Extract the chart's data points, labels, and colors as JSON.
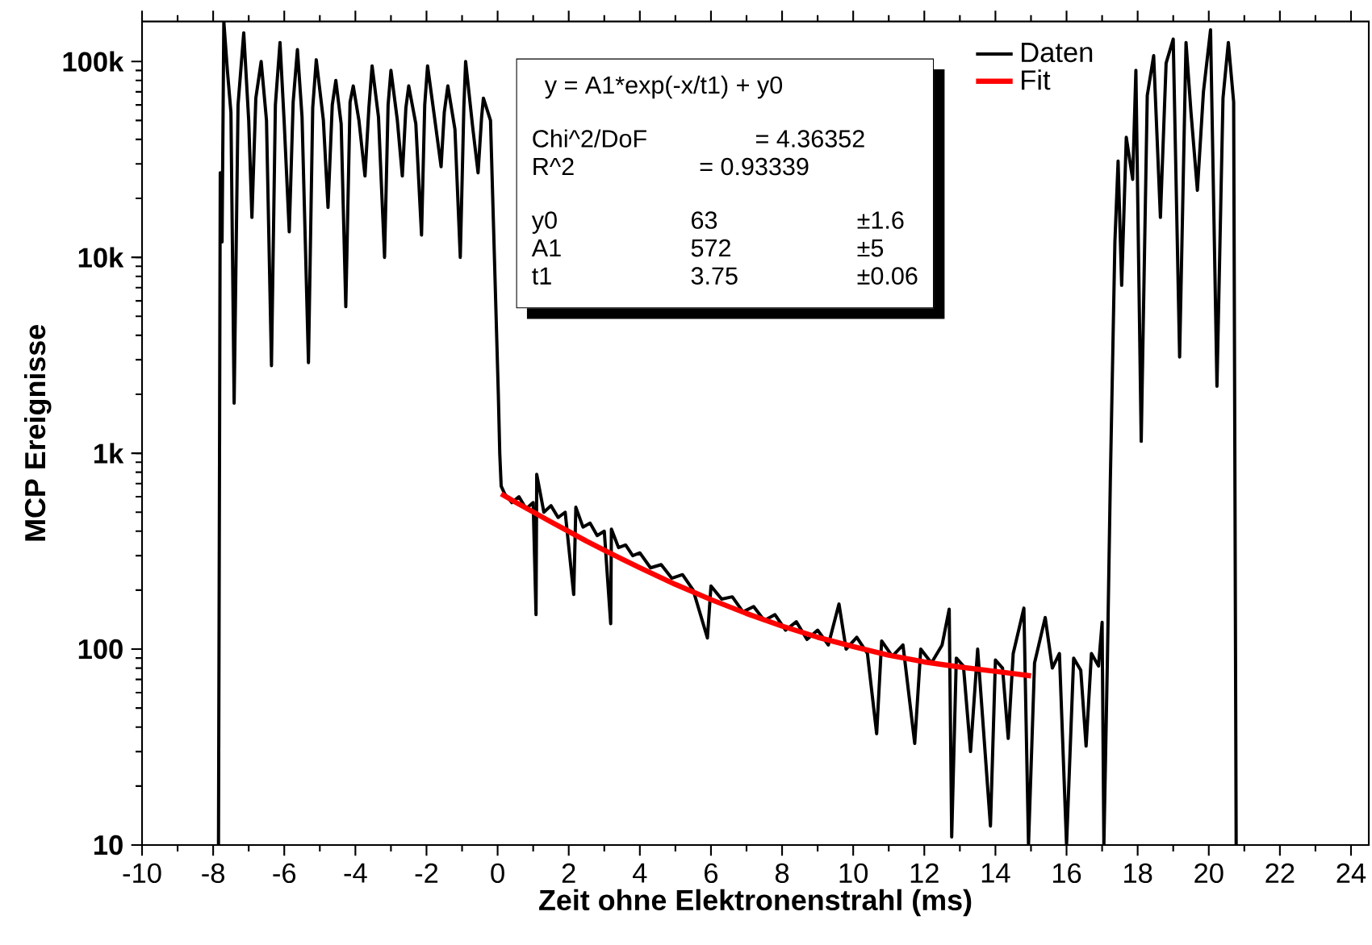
{
  "chart_data": {
    "type": "line",
    "xlabel": "Zeit ohne Elektronenstrahl  (ms)",
    "ylabel": "MCP Ereignisse",
    "log": "y",
    "legend": "top right",
    "line_style": "solid",
    "xlim": [
      -10,
      24.5
    ],
    "ylim": [
      10,
      160000
    ],
    "xticks": [
      -10,
      -8,
      -6,
      -4,
      -2,
      0,
      2,
      4,
      6,
      8,
      10,
      12,
      14,
      16,
      18,
      20,
      22,
      24
    ],
    "yticks": [
      10,
      100,
      {
        "value": 1000,
        "label": "1k"
      },
      {
        "value": 10000,
        "label": "10k"
      },
      {
        "value": 100000,
        "label": "100k"
      }
    ],
    "series": [
      {
        "name": "Daten",
        "color": "#000000",
        "x": [
          -7.85,
          -7.8,
          -7.75,
          -7.7,
          -7.6,
          -7.5,
          -7.41,
          -7.3,
          -7.14,
          -7.0,
          -6.91,
          -6.8,
          -6.65,
          -6.5,
          -6.36,
          -6.25,
          -6.12,
          -6.0,
          -5.86,
          -5.75,
          -5.63,
          -5.5,
          -5.32,
          -5.2,
          -5.1,
          -4.9,
          -4.77,
          -4.65,
          -4.55,
          -4.4,
          -4.27,
          -4.15,
          -4.06,
          -3.9,
          -3.73,
          -3.62,
          -3.53,
          -3.35,
          -3.18,
          -3.08,
          -3.0,
          -2.82,
          -2.68,
          -2.58,
          -2.5,
          -2.3,
          -2.14,
          -2.05,
          -1.97,
          -1.75,
          -1.59,
          -1.5,
          -1.4,
          -1.2,
          -1.05,
          -0.95,
          -0.9,
          -0.7,
          -0.55,
          -0.45,
          -0.4,
          -0.2,
          0.02,
          0.06,
          0.1,
          0.2,
          0.4,
          0.6,
          0.8,
          1.0,
          1.08,
          1.1,
          1.3,
          1.5,
          1.7,
          1.9,
          2.14,
          2.2,
          2.4,
          2.6,
          2.8,
          3.0,
          3.18,
          3.2,
          3.4,
          3.6,
          3.8,
          4.0,
          4.3,
          4.6,
          4.9,
          5.2,
          5.5,
          5.9,
          6.0,
          6.3,
          6.6,
          6.9,
          7.2,
          7.5,
          7.8,
          8.1,
          8.4,
          8.7,
          9.0,
          9.3,
          9.6,
          9.8,
          10.1,
          10.4,
          10.66,
          10.8,
          11.1,
          11.4,
          11.73,
          11.9,
          12.2,
          12.5,
          12.7,
          12.77,
          12.9,
          13.1,
          13.3,
          13.5,
          13.86,
          14.0,
          14.2,
          14.36,
          14.5,
          14.8,
          14.93,
          15.1,
          15.4,
          15.6,
          15.8,
          16.0,
          16.2,
          16.4,
          16.55,
          16.7,
          16.9,
          17.0,
          17.05,
          17.15,
          17.23,
          17.36,
          17.45,
          17.55,
          17.68,
          17.86,
          17.95,
          18.1,
          18.27,
          18.45,
          18.64,
          18.8,
          19.0,
          19.18,
          19.36,
          19.5,
          19.68,
          19.85,
          20.05,
          20.23,
          20.4,
          20.55,
          20.7,
          20.77
        ],
        "values": [
          10,
          27000,
          12000,
          160000,
          90000,
          55000,
          1800,
          60000,
          140000,
          50000,
          16000,
          65000,
          100000,
          50000,
          2800,
          60000,
          125000,
          48000,
          13500,
          62000,
          115000,
          52000,
          2900,
          58000,
          102000,
          50000,
          18000,
          60000,
          80000,
          48000,
          5600,
          62000,
          75000,
          50000,
          26000,
          58000,
          95000,
          52000,
          10000,
          60000,
          90000,
          50000,
          26000,
          58000,
          75000,
          48000,
          13000,
          60000,
          95000,
          48000,
          29000,
          55000,
          75000,
          45000,
          10000,
          58000,
          100000,
          46000,
          27000,
          52000,
          65000,
          50000,
          2000,
          1000,
          680,
          620,
          560,
          600,
          520,
          560,
          150,
          780,
          500,
          540,
          470,
          500,
          190,
          530,
          420,
          440,
          380,
          400,
          135,
          410,
          330,
          340,
          300,
          310,
          260,
          270,
          230,
          240,
          200,
          114,
          210,
          180,
          185,
          155,
          165,
          140,
          150,
          125,
          138,
          112,
          125,
          105,
          170,
          100,
          115,
          95,
          37,
          110,
          92,
          105,
          33,
          100,
          85,
          105,
          160,
          11,
          90,
          82,
          30,
          100,
          12.5,
          88,
          80,
          35,
          95,
          162,
          10,
          85,
          145,
          80,
          95,
          10,
          90,
          78,
          32,
          95,
          82,
          137,
          10,
          90,
          700,
          12000,
          31000,
          7200,
          41000,
          25000,
          90000,
          1150,
          67000,
          107000,
          16000,
          98000,
          130000,
          3100,
          125000,
          55000,
          22000,
          70000,
          145000,
          2200,
          65000,
          125000,
          62000,
          10
        ]
      },
      {
        "name": "Fit",
        "color": "#ff0000",
        "x": [
          0.1,
          0.5,
          1,
          1.5,
          2,
          2.5,
          3,
          3.5,
          4,
          5,
          6,
          7,
          8,
          9,
          10,
          11,
          12,
          13,
          14,
          15
        ],
        "values": [
          620,
          563,
          501,
          446,
          399,
          356,
          320,
          288,
          260,
          214,
          179,
          152,
          131,
          115,
          103,
          93,
          86,
          81,
          77,
          73
        ]
      }
    ],
    "annotations": [
      "y = A1*exp(-x/t1) + y0",
      "Chi^2/DoF",
      "= 4.36352",
      "R^2",
      "=  0.93339",
      "y0",
      "63",
      "±1.6",
      "A1",
      "572",
      "±5",
      "t1",
      "3.75",
      "±0.06"
    ]
  }
}
